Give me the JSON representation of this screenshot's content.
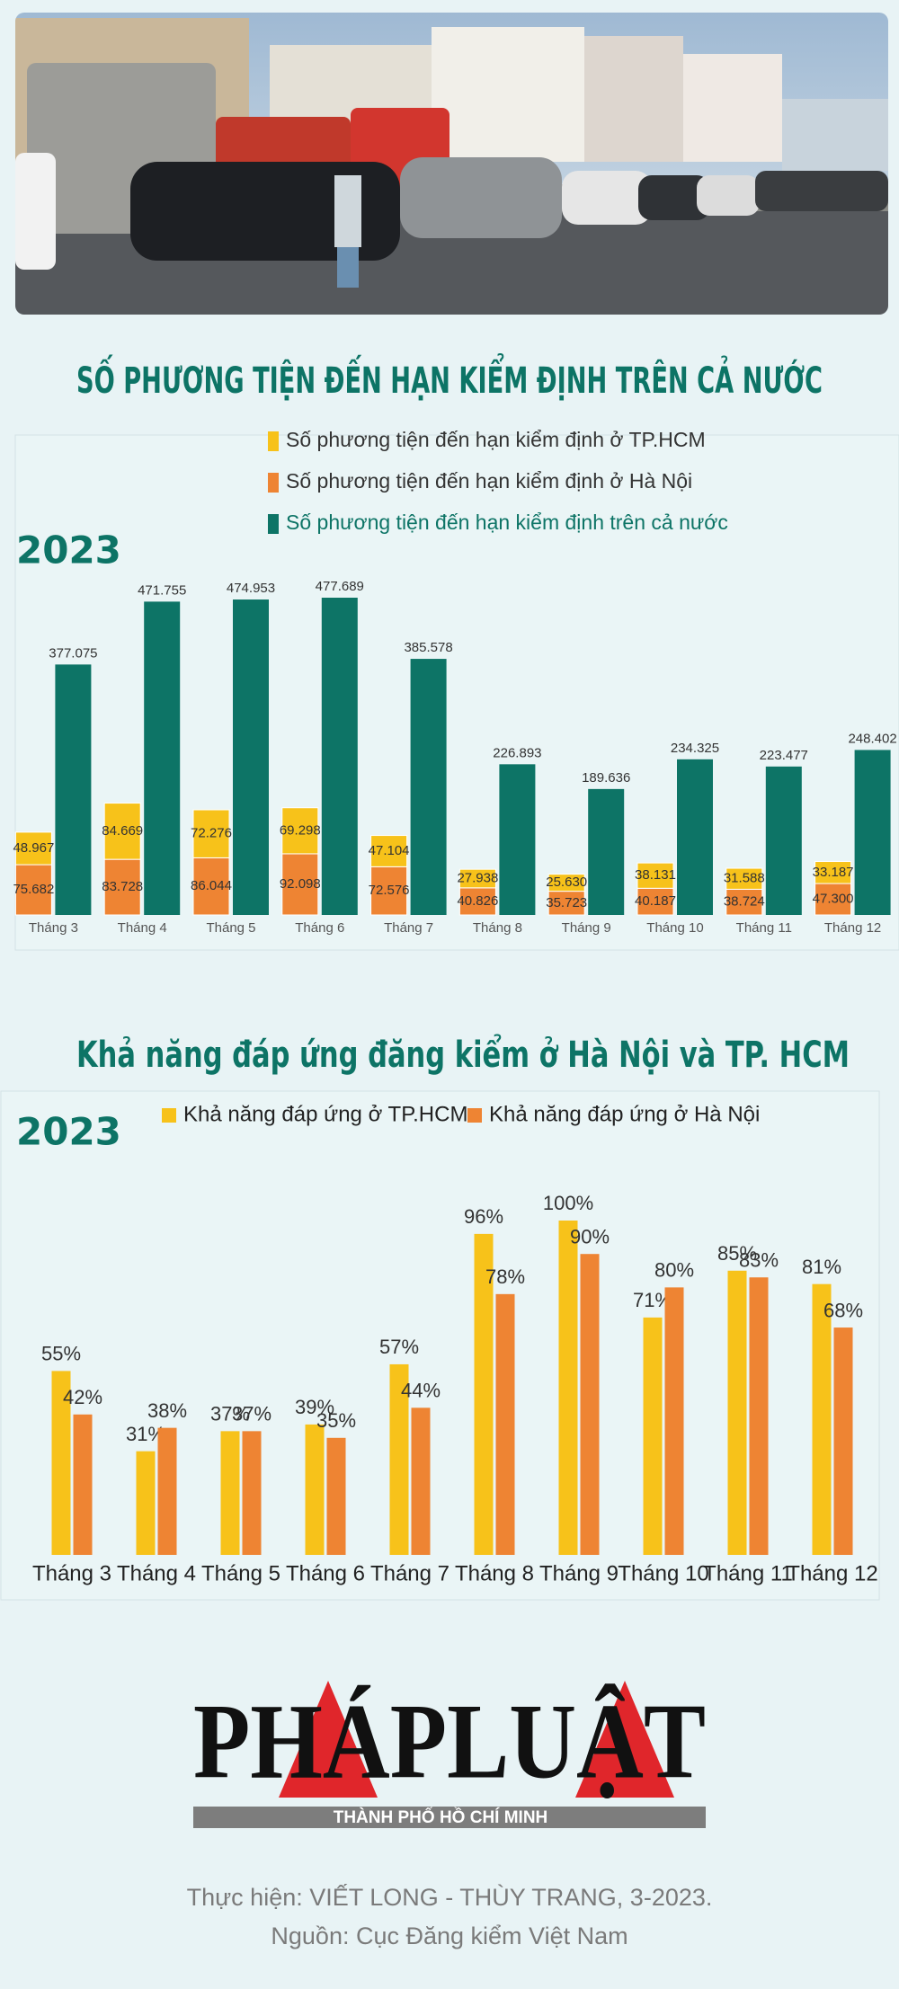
{
  "chart_data": [
    {
      "type": "bar",
      "title": "SỐ PHƯƠNG TIỆN ĐẾN HẠN KIỂM ĐỊNH TRÊN CẢ NƯỚC",
      "annotation": "2023",
      "categories": [
        "Tháng 3",
        "Tháng 4",
        "Tháng 5",
        "Tháng 6",
        "Tháng 7",
        "Tháng 8",
        "Tháng 9",
        "Tháng 10",
        "Tháng 11",
        "Tháng 12"
      ],
      "series": [
        {
          "name": "Số phương tiện đến hạn kiểm định ở TP.HCM",
          "color": "#f7c21a",
          "stack": true,
          "values": [
            48967,
            84669,
            72276,
            69298,
            47104,
            27938,
            25630,
            38131,
            31588,
            33187
          ],
          "value_labels": [
            "48.967",
            "84.669",
            "72.276",
            "69.298",
            "47.104",
            "27.938",
            "25.630",
            "38.131",
            "31.588",
            "33.187"
          ]
        },
        {
          "name": "Số phương tiện đến hạn kiểm định ở Hà Nội",
          "color": "#ee8433",
          "stack": true,
          "values": [
            75682,
            83728,
            86044,
            92098,
            72576,
            40826,
            35723,
            40187,
            38724,
            47300
          ],
          "value_labels": [
            "75.682",
            "83.728",
            "86.044",
            "92.098",
            "72.576",
            "40.826",
            "35.723",
            "40.187",
            "38.724",
            "47.300"
          ]
        },
        {
          "name": "Số phương tiện đến hạn kiểm định trên cả nước",
          "color": "#0d7466",
          "values": [
            377075,
            471755,
            474953,
            477689,
            385578,
            226893,
            189636,
            234325,
            223477,
            248402
          ],
          "value_labels": [
            "377.075",
            "471.755",
            "474.953",
            "477.689",
            "385.578",
            "226.893",
            "189.636",
            "234.325",
            "223.477",
            "248.402"
          ]
        }
      ]
    },
    {
      "type": "bar",
      "title": "Khả năng đáp ứng đăng kiểm ở Hà Nội và TP. HCM",
      "annotation": "2023",
      "categories": [
        "Tháng 3",
        "Tháng 4",
        "Tháng 5",
        "Tháng 6",
        "Tháng 7",
        "Tháng 8",
        "Tháng 9",
        "Tháng 10",
        "Tháng 11",
        "Tháng 12"
      ],
      "series": [
        {
          "name": "Khả năng đáp ứng ở TP.HCM",
          "color": "#f7c21a",
          "values": [
            55,
            31,
            37,
            39,
            57,
            96,
            100,
            71,
            85,
            81
          ],
          "value_labels": [
            "55%",
            "31%",
            "37%",
            "39%",
            "57%",
            "96%",
            "100%",
            "71%",
            "85%",
            "81%"
          ]
        },
        {
          "name": "Khả năng đáp ứng ở Hà Nội",
          "color": "#ee8433",
          "values": [
            42,
            38,
            37,
            35,
            44,
            78,
            90,
            80,
            83,
            68
          ],
          "value_labels": [
            "42%",
            "38%",
            "37%",
            "35%",
            "44%",
            "78%",
            "90%",
            "80%",
            "83%",
            "68%"
          ]
        }
      ]
    }
  ],
  "footer": {
    "logo": "PHÁPLUẬT",
    "logo_subtitle": "THÀNH PHỐ HỒ CHÍ MINH",
    "credit": "Thực hiện: VIẾT LONG - THÙY TRANG, 3-2023.",
    "source": "Nguồn: Cục Đăng kiểm Việt Nam"
  }
}
